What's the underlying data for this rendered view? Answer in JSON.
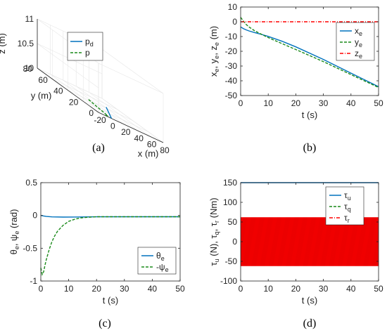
{
  "colors": {
    "blue": "#0072BD",
    "green": "#1a8a1a",
    "red": "#ff0000",
    "grid3d": "#e6e6e6"
  },
  "chart_data": [
    {
      "id": "a",
      "type": "line3d",
      "caption": "(a)",
      "xlabel": "x (m)",
      "ylabel": "y (m)",
      "zlabel": "z (m)",
      "xlim": [
        -20,
        80
      ],
      "ylim": [
        0,
        80
      ],
      "zlim": [
        10,
        11
      ],
      "xticks": [
        -20,
        0,
        20,
        40,
        60,
        80
      ],
      "yticks": [
        0,
        20,
        40,
        60,
        80
      ],
      "zticks": [
        10,
        10.5,
        11
      ],
      "zticklabels": [
        "10",
        "10.5",
        "11"
      ],
      "legend": {
        "placement": "top-right",
        "entries": [
          "p_d",
          "p"
        ]
      },
      "series": [
        {
          "name": "p_d",
          "x": [
            0,
            45
          ],
          "y": [
            0,
            45
          ],
          "z": [
            10,
            10
          ],
          "color": "#0072BD",
          "dash": "solid"
        },
        {
          "name": "p",
          "x": [
            -3,
            -2,
            2,
            8,
            14
          ],
          "y": [
            5,
            3,
            10,
            26,
            42
          ],
          "z": [
            10,
            10,
            10,
            10,
            10
          ],
          "color": "#1a8a1a",
          "dash": "dashed"
        }
      ]
    },
    {
      "id": "b",
      "type": "line",
      "caption": "(b)",
      "xlabel": "t (s)",
      "ylabel_parts": [
        "x",
        "e",
        ", y",
        "e",
        ", z",
        "e",
        " (m)"
      ],
      "xlim": [
        0,
        50
      ],
      "ylim": [
        -50,
        10
      ],
      "xticks": [
        0,
        10,
        20,
        30,
        40,
        50
      ],
      "yticks": [
        -50,
        -40,
        -30,
        -20,
        -10,
        0,
        10
      ],
      "grid": false,
      "legend": {
        "placement": "top-right",
        "entries": [
          [
            "x",
            "e"
          ],
          [
            "y",
            "e"
          ],
          [
            "z",
            "e"
          ]
        ]
      },
      "series": [
        {
          "name": "x_e",
          "x": [
            0,
            1,
            2,
            3,
            5,
            8,
            10,
            15,
            20,
            30,
            40,
            50
          ],
          "y": [
            -3.5,
            -4.6,
            -5.5,
            -6.2,
            -7.3,
            -8.8,
            -9.9,
            -13.2,
            -17.0,
            -25.5,
            -34.8,
            -44.0
          ],
          "color": "#0072BD",
          "dash": "solid"
        },
        {
          "name": "y_e",
          "x": [
            0,
            1,
            2,
            3,
            5,
            8,
            10,
            15,
            20,
            30,
            40,
            50
          ],
          "y": [
            3.0,
            0.5,
            -1.8,
            -3.5,
            -6.0,
            -8.9,
            -10.7,
            -14.8,
            -18.8,
            -27.0,
            -35.8,
            -44.5
          ],
          "color": "#1a8a1a",
          "dash": "dashed"
        },
        {
          "name": "z_e",
          "x": [
            0,
            50
          ],
          "y": [
            0,
            0
          ],
          "color": "#ff0000",
          "dash": "dashdot"
        }
      ]
    },
    {
      "id": "c",
      "type": "line",
      "caption": "(c)",
      "xlabel": "t (s)",
      "ylabel_parts": [
        "θ",
        "e",
        ", ψ",
        "e",
        " (rad)"
      ],
      "xlim": [
        0,
        50
      ],
      "ylim": [
        -1,
        0.5
      ],
      "xticks": [
        0,
        10,
        20,
        30,
        40,
        50
      ],
      "yticks": [
        -1,
        -0.5,
        0,
        0.5
      ],
      "yticklabels": [
        "-1",
        "-0.5",
        "0",
        "0.5"
      ],
      "grid": false,
      "legend": {
        "placement": "bottom-right",
        "entries": [
          [
            "θ",
            "e"
          ],
          [
            "-ψ",
            "e"
          ]
        ]
      },
      "series": [
        {
          "name": "θ_e",
          "x": [
            0,
            1,
            2,
            4,
            8,
            12,
            20,
            50
          ],
          "y": [
            0.0,
            -0.008,
            -0.015,
            -0.022,
            -0.025,
            -0.024,
            -0.021,
            -0.02
          ],
          "color": "#0072BD",
          "dash": "solid"
        },
        {
          "name": "-ψ_e",
          "x": [
            0,
            0.5,
            1,
            1.5,
            2,
            3,
            4,
            5,
            6,
            8,
            10,
            12,
            14,
            16,
            20,
            25,
            30,
            50
          ],
          "y": [
            -0.8,
            -0.9,
            -0.86,
            -0.76,
            -0.67,
            -0.52,
            -0.4,
            -0.31,
            -0.24,
            -0.15,
            -0.09,
            -0.06,
            -0.04,
            -0.03,
            -0.02,
            -0.02,
            -0.02,
            -0.02
          ],
          "color": "#1a8a1a",
          "dash": "dashed"
        }
      ]
    },
    {
      "id": "d",
      "type": "line",
      "caption": "(d)",
      "xlabel": "t (s)",
      "ylabel_parts": [
        "τ",
        "u",
        " (N), τ",
        "q",
        ", τ",
        "r",
        " (Nm)"
      ],
      "xlim": [
        0,
        50
      ],
      "ylim": [
        -100,
        150
      ],
      "xticks": [
        0,
        10,
        20,
        30,
        40,
        50
      ],
      "yticks": [
        -100,
        -50,
        0,
        50,
        100,
        150
      ],
      "grid": false,
      "legend": {
        "placement": "top-right",
        "entries": [
          [
            "τ",
            "u"
          ],
          [
            "τ",
            "q"
          ],
          [
            "τ",
            "r"
          ]
        ]
      },
      "series": [
        {
          "name": "τ_u",
          "x": [
            0,
            50
          ],
          "y": [
            150,
            150
          ],
          "color": "#0072BD",
          "dash": "solid"
        },
        {
          "name": "τ_q",
          "x": [
            0,
            50
          ],
          "y": [
            0,
            0
          ],
          "color": "#1a8a1a",
          "dash": "dashed"
        },
        {
          "name": "τ_r",
          "type": "band",
          "x": [
            0,
            50
          ],
          "y_min": -62,
          "y_max": 62,
          "color": "#ff0000",
          "dash": "dashdot"
        }
      ]
    }
  ]
}
